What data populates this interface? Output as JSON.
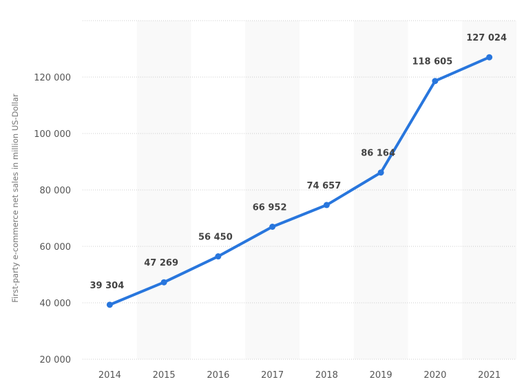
{
  "chart_data": {
    "type": "line",
    "title": "",
    "xlabel": "",
    "ylabel": "First-party e-commerce net sales in million US-Dollar",
    "categories": [
      "2014",
      "2015",
      "2016",
      "2017",
      "2018",
      "2019",
      "2020",
      "2021"
    ],
    "series": [
      {
        "name": "First-party e-commerce net sales",
        "values": [
          39304,
          47269,
          56450,
          66952,
          74657,
          86164,
          118605,
          127024
        ]
      }
    ],
    "data_labels": [
      "39 304",
      "47 269",
      "56 450",
      "66 952",
      "74 657",
      "86 164",
      "118 605",
      "127 024"
    ],
    "ylim": [
      20000,
      140000
    ],
    "yticks": [
      20000,
      40000,
      60000,
      80000,
      100000,
      120000
    ],
    "ytick_labels": [
      "20 000",
      "40 000",
      "60 000",
      "80 000",
      "100 000",
      "120 000"
    ],
    "grid": true,
    "colors": {
      "line": "#2876dd",
      "band": "#f9f9f9",
      "grid": "#cccccc"
    }
  }
}
